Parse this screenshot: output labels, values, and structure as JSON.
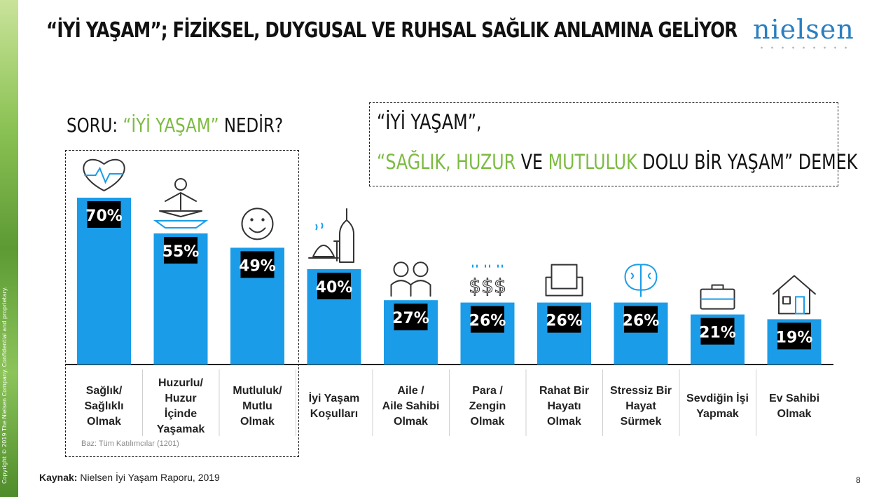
{
  "header": {
    "title": "“İYİ YAŞAM”; FİZİKSEL, DUYGUSAL VE RUHSAL SAĞLIK ANLAMINA GELİYOR",
    "logo_text": "nielsen"
  },
  "question": {
    "prefix": "SORU: ",
    "highlight": "“İYİ YAŞAM”",
    "suffix": " NEDİR?"
  },
  "callout": {
    "line1": "“İYİ YAŞAM”,",
    "line2_q1": "“",
    "line2_g1": "SAĞLIK, HUZUR",
    "line2_t1": " VE ",
    "line2_g2": "MUTLULUK",
    "line2_t2": " DOLU BİR YAŞAM” DEMEK"
  },
  "base_note": "Baz: Tüm Katılımcılar  (1201)",
  "source": {
    "label": "Kaynak:",
    "text": " Nielsen İyi Yaşam Raporu, 2019"
  },
  "copyright": "Copyright © 2019 The Nielsen Company. Confidential and proprietary.",
  "page_number": "8",
  "colors": {
    "bar": "#1a9ce8",
    "accent_green": "#7dbb42",
    "value_box": "#000000",
    "logo": "#2a7fc0"
  },
  "chart_data": {
    "type": "bar",
    "categories": [
      [
        "Sağlık/",
        "Sağlıklı",
        "Olmak"
      ],
      [
        "Huzurlu/",
        "Huzur",
        "İçinde",
        "Yaşamak"
      ],
      [
        "Mutluluk/",
        "Mutlu",
        "Olmak"
      ],
      [
        "İyi Yaşam",
        "Koşulları"
      ],
      [
        "Aile /",
        "Aile Sahibi",
        "Olmak"
      ],
      [
        "Para /",
        "Zengin",
        "Olmak"
      ],
      [
        "Rahat Bir",
        "Hayatı",
        "Olmak"
      ],
      [
        "Stressiz Bir",
        "Hayat",
        "Sürmek"
      ],
      [
        "Sevdiğin İşi",
        "Yapmak"
      ],
      [
        "Ev Sahibi",
        "Olmak"
      ]
    ],
    "values": [
      70,
      55,
      49,
      40,
      27,
      26,
      26,
      26,
      21,
      19
    ],
    "value_labels": [
      "70%",
      "55%",
      "49%",
      "40%",
      "27%",
      "26%",
      "26%",
      "26%",
      "21%",
      "19%"
    ],
    "icons": [
      "heart-rate-icon",
      "meditation-icon",
      "smiley-icon",
      "dining-icon",
      "family-icon",
      "money-icon",
      "armchair-icon",
      "brain-icon",
      "briefcase-icon",
      "house-icon"
    ],
    "highlighted_group": [
      0,
      1,
      2
    ],
    "ylim": [
      0,
      100
    ]
  }
}
